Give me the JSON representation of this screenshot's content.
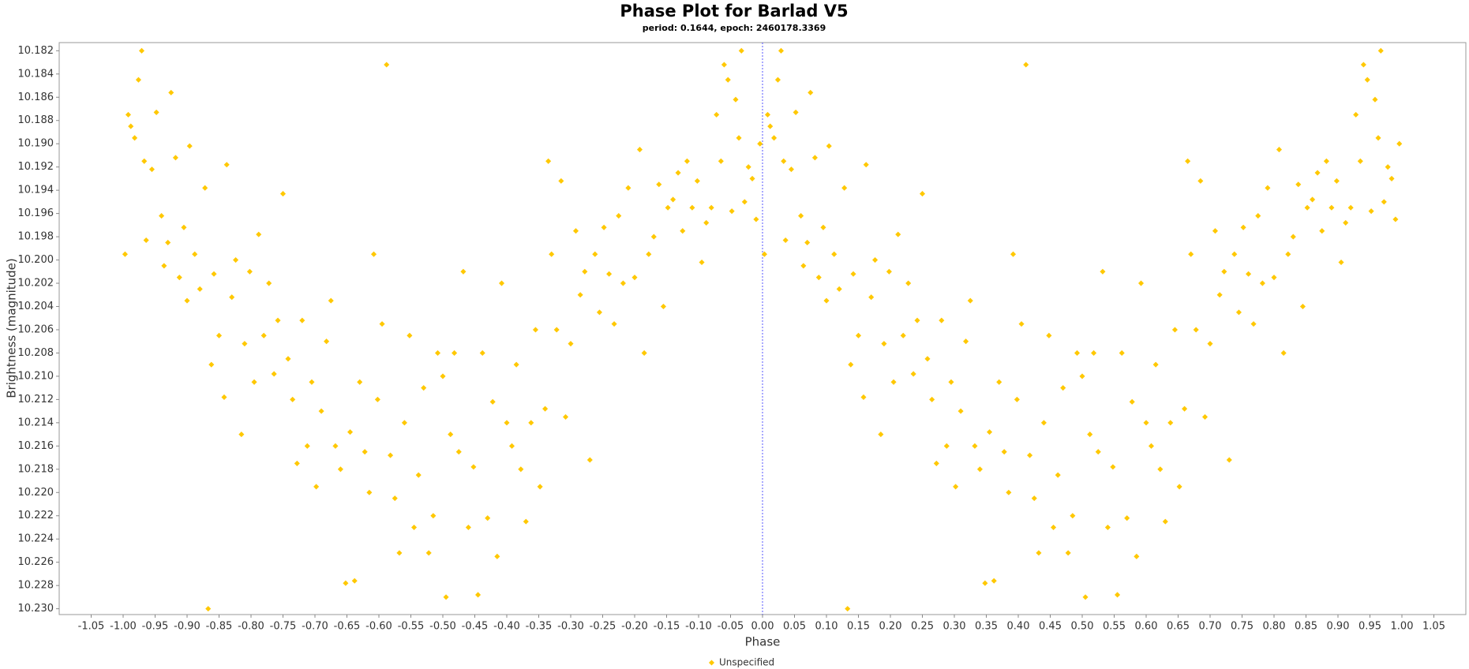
{
  "chart_data": {
    "type": "scatter",
    "title": "Phase Plot for Barlad V5",
    "subtitle": "period: 0.1644, epoch: 2460178.3369",
    "x_label": "Phase",
    "y_label": "Brightness (magnitude)",
    "xlim": [
      -1.1,
      1.1
    ],
    "ylim": [
      10.2305,
      10.1813
    ],
    "vline": 0,
    "legend": "bottom",
    "xticks": [
      -1.05,
      {
        "value": -1,
        "label": "-1.00"
      },
      -0.95,
      {
        "value": -0.9,
        "label": "-0.90"
      },
      -0.85,
      {
        "value": -0.8,
        "label": "-0.80"
      },
      -0.75,
      {
        "value": -0.7,
        "label": "-0.70"
      },
      -0.65,
      {
        "value": -0.6,
        "label": "-0.60"
      },
      -0.55,
      {
        "value": -0.5,
        "label": "-0.50"
      },
      -0.45,
      {
        "value": -0.4,
        "label": "-0.40"
      },
      -0.35,
      {
        "value": -0.3,
        "label": "-0.30"
      },
      -0.25,
      {
        "value": -0.2,
        "label": "-0.20"
      },
      -0.15,
      {
        "value": -0.1,
        "label": "-0.10"
      },
      -0.05,
      {
        "value": 0,
        "label": "0.00"
      },
      0.05,
      {
        "value": 0.1,
        "label": "0.10"
      },
      0.15,
      {
        "value": 0.2,
        "label": "0.20"
      },
      0.25,
      {
        "value": 0.3,
        "label": "0.30"
      },
      0.35,
      {
        "value": 0.4,
        "label": "0.40"
      },
      0.45,
      {
        "value": 0.5,
        "label": "0.50"
      },
      0.55,
      {
        "value": 0.6,
        "label": "0.60"
      },
      0.65,
      {
        "value": 0.7,
        "label": "0.70"
      },
      0.75,
      {
        "value": 0.8,
        "label": "0.80"
      },
      0.85,
      {
        "value": 0.9,
        "label": "0.90"
      },
      0.95,
      {
        "value": 1,
        "label": "1.00"
      },
      1.05
    ],
    "yticks": [
      10.182,
      10.184,
      10.186,
      10.188,
      {
        "value": 10.19,
        "label": "10.190"
      },
      10.192,
      10.194,
      10.196,
      10.198,
      {
        "value": 10.2,
        "label": "10.200"
      },
      10.202,
      10.204,
      10.206,
      10.208,
      {
        "value": 10.21,
        "label": "10.210"
      },
      10.212,
      10.214,
      10.216,
      10.218,
      {
        "value": 10.22,
        "label": "10.220"
      },
      10.222,
      10.224,
      10.226,
      10.228,
      {
        "value": 10.23,
        "label": "10.230"
      }
    ],
    "series": [
      {
        "name": "Unspecified",
        "color": "#ffc800",
        "x": [
          -0.997,
          -0.992,
          -0.988,
          -0.982,
          -0.976,
          -0.971,
          -0.967,
          -0.964,
          -0.955,
          -0.948,
          -0.94,
          -0.936,
          -0.93,
          -0.925,
          -0.918,
          -0.912,
          -0.905,
          -0.9,
          -0.896,
          -0.888,
          -0.88,
          -0.872,
          -0.867,
          -0.862,
          -0.858,
          -0.85,
          -0.842,
          -0.838,
          -0.83,
          -0.824,
          -0.815,
          -0.81,
          -0.802,
          -0.795,
          -0.788,
          -0.78,
          -0.772,
          -0.764,
          -0.758,
          -0.75,
          -0.742,
          -0.735,
          -0.728,
          -0.72,
          -0.712,
          -0.705,
          -0.698,
          -0.69,
          -0.682,
          -0.675,
          -0.668,
          -0.66,
          -0.652,
          -0.645,
          -0.638,
          -0.63,
          -0.622,
          -0.615,
          -0.608,
          -0.602,
          -0.595,
          -0.588,
          -0.582,
          -0.575,
          -0.568,
          -0.56,
          -0.552,
          -0.545,
          -0.538,
          -0.53,
          -0.522,
          -0.515,
          -0.508,
          -0.5,
          -0.495,
          -0.488,
          -0.482,
          -0.475,
          -0.468,
          -0.46,
          -0.452,
          -0.445,
          -0.438,
          -0.43,
          -0.422,
          -0.415,
          -0.408,
          -0.4,
          -0.392,
          -0.385,
          -0.378,
          -0.37,
          -0.362,
          -0.355,
          -0.348,
          -0.34,
          -0.335,
          -0.33,
          -0.322,
          -0.315,
          -0.308,
          -0.3,
          -0.292,
          -0.285,
          -0.278,
          -0.27,
          -0.262,
          -0.255,
          -0.248,
          -0.24,
          -0.232,
          -0.225,
          -0.218,
          -0.21,
          -0.2,
          -0.192,
          -0.185,
          -0.178,
          -0.17,
          -0.162,
          -0.155,
          -0.148,
          -0.14,
          -0.132,
          -0.125,
          -0.118,
          -0.11,
          -0.102,
          -0.095,
          -0.088,
          -0.08,
          -0.072,
          -0.065,
          -0.06,
          -0.054,
          -0.048,
          -0.042,
          -0.037,
          -0.033,
          -0.028,
          -0.022,
          -0.016,
          -0.01,
          -0.004,
          0.003,
          0.008,
          0.012,
          0.018,
          0.024,
          0.029,
          0.033,
          0.036,
          0.045,
          0.052,
          0.06,
          0.064,
          0.07,
          0.075,
          0.082,
          0.088,
          0.095,
          0.1,
          0.104,
          0.112,
          0.12,
          0.128,
          0.133,
          0.138,
          0.142,
          0.15,
          0.158,
          0.162,
          0.17,
          0.176,
          0.185,
          0.19,
          0.198,
          0.205,
          0.212,
          0.22,
          0.228,
          0.236,
          0.242,
          0.25,
          0.258,
          0.265,
          0.272,
          0.28,
          0.288,
          0.295,
          0.302,
          0.31,
          0.318,
          0.325,
          0.332,
          0.34,
          0.348,
          0.355,
          0.362,
          0.37,
          0.378,
          0.385,
          0.392,
          0.398,
          0.405,
          0.412,
          0.418,
          0.425,
          0.432,
          0.44,
          0.448,
          0.455,
          0.462,
          0.47,
          0.478,
          0.485,
          0.492,
          0.5,
          0.505,
          0.512,
          0.518,
          0.525,
          0.532,
          0.54,
          0.548,
          0.555,
          0.562,
          0.57,
          0.578,
          0.585,
          0.592,
          0.6,
          0.608,
          0.615,
          0.622,
          0.63,
          0.638,
          0.645,
          0.652,
          0.66,
          0.665,
          0.67,
          0.678,
          0.685,
          0.692,
          0.7,
          0.708,
          0.715,
          0.722,
          0.73,
          0.738,
          0.745,
          0.752,
          0.76,
          0.768,
          0.775,
          0.782,
          0.79,
          0.8,
          0.808,
          0.815,
          0.822,
          0.83,
          0.838,
          0.845,
          0.852,
          0.86,
          0.868,
          0.875,
          0.882,
          0.89,
          0.898,
          0.905,
          0.912,
          0.92,
          0.928,
          0.935,
          0.94,
          0.946,
          0.952,
          0.958,
          0.963,
          0.967,
          0.972,
          0.978,
          0.984,
          0.99,
          0.996
        ],
        "values": [
          10.1995,
          10.1875,
          10.1885,
          10.1895,
          10.1845,
          10.182,
          10.1915,
          10.1983,
          10.1922,
          10.1873,
          10.1962,
          10.2005,
          10.1985,
          10.1856,
          10.1912,
          10.2015,
          10.1972,
          10.2035,
          10.1902,
          10.1995,
          10.2025,
          10.1938,
          10.23,
          10.209,
          10.2012,
          10.2065,
          10.2118,
          10.1918,
          10.2032,
          10.2,
          10.215,
          10.2072,
          10.201,
          10.2105,
          10.1978,
          10.2065,
          10.202,
          10.2098,
          10.2052,
          10.1943,
          10.2085,
          10.212,
          10.2175,
          10.2052,
          10.216,
          10.2105,
          10.2195,
          10.213,
          10.207,
          10.2035,
          10.216,
          10.218,
          10.2278,
          10.2148,
          10.2276,
          10.2105,
          10.2165,
          10.22,
          10.1995,
          10.212,
          10.2055,
          10.1832,
          10.2168,
          10.2205,
          10.2252,
          10.214,
          10.2065,
          10.223,
          10.2185,
          10.211,
          10.2252,
          10.222,
          10.208,
          10.21,
          10.229,
          10.215,
          10.208,
          10.2165,
          10.201,
          10.223,
          10.2178,
          10.2288,
          10.208,
          10.2222,
          10.2122,
          10.2255,
          10.202,
          10.214,
          10.216,
          10.209,
          10.218,
          10.2225,
          10.214,
          10.206,
          10.2195,
          10.2128,
          10.1915,
          10.1995,
          10.206,
          10.1932,
          10.2135,
          10.2072,
          10.1975,
          10.203,
          10.201,
          10.2172,
          10.1995,
          10.2045,
          10.1972,
          10.2012,
          10.2055,
          10.1962,
          10.202,
          10.1938,
          10.2015,
          10.1905,
          10.208,
          10.1995,
          10.198,
          10.1935,
          10.204,
          10.1955,
          10.1948,
          10.1925,
          10.1975,
          10.1915,
          10.1955,
          10.1932,
          10.2002,
          10.1968,
          10.1955,
          10.1875,
          10.1915,
          10.1832,
          10.1845,
          10.1958,
          10.1862,
          10.1895,
          10.182,
          10.195,
          10.192,
          10.193,
          10.1965,
          10.19,
          10.1995,
          10.1875,
          10.1885,
          10.1895,
          10.1845,
          10.182,
          10.1915,
          10.1983,
          10.1922,
          10.1873,
          10.1962,
          10.2005,
          10.1985,
          10.1856,
          10.1912,
          10.2015,
          10.1972,
          10.2035,
          10.1902,
          10.1995,
          10.2025,
          10.1938,
          10.23,
          10.209,
          10.2012,
          10.2065,
          10.2118,
          10.1918,
          10.2032,
          10.2,
          10.215,
          10.2072,
          10.201,
          10.2105,
          10.1978,
          10.2065,
          10.202,
          10.2098,
          10.2052,
          10.1943,
          10.2085,
          10.212,
          10.2175,
          10.2052,
          10.216,
          10.2105,
          10.2195,
          10.213,
          10.207,
          10.2035,
          10.216,
          10.218,
          10.2278,
          10.2148,
          10.2276,
          10.2105,
          10.2165,
          10.22,
          10.1995,
          10.212,
          10.2055,
          10.1832,
          10.2168,
          10.2205,
          10.2252,
          10.214,
          10.2065,
          10.223,
          10.2185,
          10.211,
          10.2252,
          10.222,
          10.208,
          10.21,
          10.229,
          10.215,
          10.208,
          10.2165,
          10.201,
          10.223,
          10.2178,
          10.2288,
          10.208,
          10.2222,
          10.2122,
          10.2255,
          10.202,
          10.214,
          10.216,
          10.209,
          10.218,
          10.2225,
          10.214,
          10.206,
          10.2195,
          10.2128,
          10.1915,
          10.1995,
          10.206,
          10.1932,
          10.2135,
          10.2072,
          10.1975,
          10.203,
          10.201,
          10.2172,
          10.1995,
          10.2045,
          10.1972,
          10.2012,
          10.2055,
          10.1962,
          10.202,
          10.1938,
          10.2015,
          10.1905,
          10.208,
          10.1995,
          10.198,
          10.1935,
          10.204,
          10.1955,
          10.1948,
          10.1925,
          10.1975,
          10.1915,
          10.1955,
          10.1932,
          10.2002,
          10.1968,
          10.1955,
          10.1875,
          10.1915,
          10.1832,
          10.1845,
          10.1958,
          10.1862,
          10.1895,
          10.182,
          10.195,
          10.192,
          10.193,
          10.1965,
          10.19
        ]
      }
    ]
  }
}
